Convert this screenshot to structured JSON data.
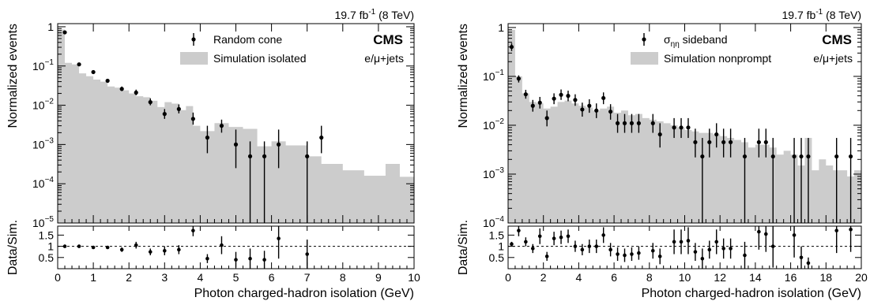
{
  "colors": {
    "simulation_fill": "#cccccc",
    "data_marker": "#000000",
    "frame": "#000000"
  },
  "chart_data": [
    {
      "type": "histogram",
      "lumi": {
        "value": "19.7 fb",
        "exp": "-1",
        "energy": " (8 TeV)"
      },
      "cms": "CMS",
      "channel": "e/μ+jets",
      "ylabel": "Normalized events",
      "ratio_ylabel": "Data/Sim.",
      "xlabel": "Photon charged-hadron isolation (GeV)",
      "xlim": [
        0,
        10
      ],
      "ylim": [
        1e-05,
        1.2
      ],
      "yscale": "log",
      "ratio_ylim": [
        0,
        1.9
      ],
      "x_ticks": [
        "0",
        "1",
        "2",
        "3",
        "4",
        "5",
        "6",
        "7",
        "8",
        "9",
        "10"
      ],
      "y_ticks": [
        {
          "base": "1",
          "exp": ""
        },
        {
          "base": "10",
          "exp": "−1"
        },
        {
          "base": "10",
          "exp": "−2"
        },
        {
          "base": "10",
          "exp": "−3"
        },
        {
          "base": "10",
          "exp": "−4"
        },
        {
          "base": "10",
          "exp": "−5"
        }
      ],
      "ratio_ticks": [
        "0.5",
        "1",
        "1.5"
      ],
      "legend": {
        "data": "Random cone",
        "sim": "Simulation isolated"
      },
      "sim_bins": {
        "edges": [
          0,
          0.2,
          0.4,
          0.6,
          0.8,
          1.0,
          1.2,
          1.4,
          1.6,
          1.8,
          2.0,
          2.2,
          2.4,
          2.6,
          2.8,
          3.0,
          3.2,
          3.4,
          3.6,
          3.8,
          4.0,
          4.4,
          4.8,
          5.2,
          5.6,
          6.0,
          6.4,
          7.0,
          7.4,
          8.0,
          8.6,
          9.2,
          9.6,
          10.0
        ],
        "values": [
          0.85,
          0.12,
          0.11,
          0.065,
          0.055,
          0.045,
          0.04,
          0.03,
          0.028,
          0.024,
          0.02,
          0.017,
          0.016,
          0.013,
          0.009,
          0.012,
          0.011,
          0.0075,
          0.0095,
          0.003,
          0.0022,
          0.0035,
          0.0028,
          0.0025,
          0.0009,
          0.0012,
          0.00095,
          0.0005,
          0.00032,
          0.00022,
          0.00016,
          0.00032,
          0.00015
        ]
      },
      "data_points": [
        {
          "x": 0.2,
          "y": 0.72,
          "lo": 0.65,
          "hi": 0.8
        },
        {
          "x": 0.6,
          "y": 0.11,
          "lo": 0.1,
          "hi": 0.12
        },
        {
          "x": 1.0,
          "y": 0.07,
          "lo": 0.064,
          "hi": 0.077
        },
        {
          "x": 1.4,
          "y": 0.042,
          "lo": 0.038,
          "hi": 0.047
        },
        {
          "x": 1.8,
          "y": 0.026,
          "lo": 0.023,
          "hi": 0.03
        },
        {
          "x": 2.2,
          "y": 0.021,
          "lo": 0.018,
          "hi": 0.025
        },
        {
          "x": 2.6,
          "y": 0.012,
          "lo": 0.01,
          "hi": 0.015
        },
        {
          "x": 3.0,
          "y": 0.006,
          "lo": 0.0045,
          "hi": 0.008
        },
        {
          "x": 3.4,
          "y": 0.008,
          "lo": 0.0062,
          "hi": 0.0105
        },
        {
          "x": 3.8,
          "y": 0.0045,
          "lo": 0.0032,
          "hi": 0.0065
        },
        {
          "x": 4.2,
          "y": 0.0015,
          "lo": 0.0006,
          "hi": 0.003
        },
        {
          "x": 4.6,
          "y": 0.003,
          "lo": 0.002,
          "hi": 0.0043
        },
        {
          "x": 5.0,
          "y": 0.001,
          "lo": 0.00025,
          "hi": 0.0024
        },
        {
          "x": 5.4,
          "y": 0.0005,
          "lo": 1e-05,
          "hi": 0.0012
        },
        {
          "x": 5.8,
          "y": 0.0005,
          "lo": 1e-05,
          "hi": 0.0012
        },
        {
          "x": 6.2,
          "y": 0.001,
          "lo": 0.00025,
          "hi": 0.0024
        },
        {
          "x": 7.0,
          "y": 0.0005,
          "lo": 1e-05,
          "hi": 0.0012
        },
        {
          "x": 7.4,
          "y": 0.0015,
          "lo": 0.0006,
          "hi": 0.003
        }
      ],
      "ratio_points": [
        {
          "x": 0.2,
          "y": 1.0,
          "err": 0.05
        },
        {
          "x": 0.6,
          "y": 1.0,
          "err": 0.05
        },
        {
          "x": 1.0,
          "y": 0.95,
          "err": 0.06
        },
        {
          "x": 1.4,
          "y": 0.95,
          "err": 0.07
        },
        {
          "x": 1.8,
          "y": 0.85,
          "err": 0.1
        },
        {
          "x": 2.2,
          "y": 1.05,
          "err": 0.15
        },
        {
          "x": 2.6,
          "y": 0.75,
          "err": 0.15
        },
        {
          "x": 3.0,
          "y": 0.8,
          "err": 0.2
        },
        {
          "x": 3.4,
          "y": 0.85,
          "err": 0.2
        },
        {
          "x": 3.8,
          "y": 1.7,
          "err": 0.25
        },
        {
          "x": 4.2,
          "y": 0.45,
          "err": 0.2
        },
        {
          "x": 4.6,
          "y": 1.05,
          "err": 0.4
        },
        {
          "x": 5.0,
          "y": 0.4,
          "err": 0.35
        },
        {
          "x": 5.4,
          "y": 0.45,
          "err": 0.45
        },
        {
          "x": 5.8,
          "y": 0.4,
          "err": 0.4
        },
        {
          "x": 6.2,
          "y": 1.35,
          "err": 0.9
        },
        {
          "x": 7.0,
          "y": 0.65,
          "err": 0.65
        }
      ]
    },
    {
      "type": "histogram",
      "lumi": {
        "value": "19.7 fb",
        "exp": "-1",
        "energy": " (8 TeV)"
      },
      "cms": "CMS",
      "channel": "e/μ+jets",
      "ylabel": "Normalized events",
      "ratio_ylabel": "Data/Sim.",
      "xlabel": "Photon charged-hadron isolation (GeV)",
      "xlim": [
        0,
        20
      ],
      "ylim": [
        0.0001,
        1.2
      ],
      "yscale": "log",
      "ratio_ylim": [
        0,
        1.9
      ],
      "x_ticks": [
        "0",
        "2",
        "4",
        "6",
        "8",
        "10",
        "12",
        "14",
        "16",
        "18",
        "20"
      ],
      "y_ticks": [
        {
          "base": "1",
          "exp": ""
        },
        {
          "base": "10",
          "exp": "−1"
        },
        {
          "base": "10",
          "exp": "−2"
        },
        {
          "base": "10",
          "exp": "−3"
        },
        {
          "base": "10",
          "exp": "−4"
        }
      ],
      "ratio_ticks": [
        "0.5",
        "1",
        "1.5"
      ],
      "legend": {
        "data": "σ",
        "data_sub": "ηη",
        "data_rest": " sideband",
        "sim": "Simulation nonprompt"
      },
      "sim_bins": {
        "edges": [
          0,
          0.4,
          0.8,
          1.2,
          1.6,
          2.0,
          2.4,
          2.8,
          3.2,
          3.6,
          4.0,
          4.4,
          4.8,
          5.2,
          5.6,
          6.0,
          6.4,
          6.8,
          7.2,
          7.6,
          8.0,
          8.4,
          8.8,
          9.2,
          9.6,
          10.0,
          10.4,
          10.8,
          11.2,
          11.6,
          12.0,
          12.4,
          12.8,
          13.2,
          13.6,
          14.0,
          14.4,
          14.8,
          15.2,
          15.6,
          16.0,
          16.4,
          16.8,
          17.2,
          17.6,
          18.0,
          18.4,
          18.8,
          19.2,
          19.6,
          20.0
        ],
        "values": [
          0.9,
          0.1,
          0.045,
          0.03,
          0.028,
          0.022,
          0.024,
          0.03,
          0.032,
          0.028,
          0.025,
          0.023,
          0.02,
          0.022,
          0.024,
          0.018,
          0.02,
          0.016,
          0.017,
          0.014,
          0.013,
          0.012,
          0.011,
          0.01,
          0.009,
          0.008,
          0.0075,
          0.007,
          0.007,
          0.0065,
          0.006,
          0.0055,
          0.005,
          0.0045,
          0.0035,
          0.004,
          0.004,
          0.0035,
          0.0025,
          0.003,
          0.0025,
          0.0015,
          0.0055,
          0.0012,
          0.002,
          0.0015,
          0.0012,
          0.0012,
          0.0009,
          0.0012
        ]
      },
      "data_points": [
        {
          "x": 0.2,
          "y": 0.4,
          "lo": 0.33,
          "hi": 0.48
        },
        {
          "x": 0.6,
          "y": 0.09,
          "lo": 0.075,
          "hi": 0.105
        },
        {
          "x": 1.0,
          "y": 0.043,
          "lo": 0.035,
          "hi": 0.053
        },
        {
          "x": 1.4,
          "y": 0.025,
          "lo": 0.019,
          "hi": 0.033
        },
        {
          "x": 1.8,
          "y": 0.029,
          "lo": 0.022,
          "hi": 0.038
        },
        {
          "x": 2.2,
          "y": 0.014,
          "lo": 0.0095,
          "hi": 0.02
        },
        {
          "x": 2.6,
          "y": 0.035,
          "lo": 0.027,
          "hi": 0.045
        },
        {
          "x": 3.0,
          "y": 0.042,
          "lo": 0.033,
          "hi": 0.054
        },
        {
          "x": 3.4,
          "y": 0.04,
          "lo": 0.031,
          "hi": 0.051
        },
        {
          "x": 3.8,
          "y": 0.033,
          "lo": 0.025,
          "hi": 0.043
        },
        {
          "x": 4.2,
          "y": 0.021,
          "lo": 0.015,
          "hi": 0.029
        },
        {
          "x": 4.6,
          "y": 0.025,
          "lo": 0.018,
          "hi": 0.034
        },
        {
          "x": 5.0,
          "y": 0.02,
          "lo": 0.014,
          "hi": 0.028
        },
        {
          "x": 5.4,
          "y": 0.036,
          "lo": 0.027,
          "hi": 0.047
        },
        {
          "x": 5.8,
          "y": 0.019,
          "lo": 0.013,
          "hi": 0.027
        },
        {
          "x": 6.2,
          "y": 0.011,
          "lo": 0.007,
          "hi": 0.017
        },
        {
          "x": 6.6,
          "y": 0.011,
          "lo": 0.007,
          "hi": 0.017
        },
        {
          "x": 7.0,
          "y": 0.011,
          "lo": 0.007,
          "hi": 0.017
        },
        {
          "x": 7.4,
          "y": 0.011,
          "lo": 0.007,
          "hi": 0.017
        },
        {
          "x": 8.2,
          "y": 0.011,
          "lo": 0.007,
          "hi": 0.017
        },
        {
          "x": 8.6,
          "y": 0.0065,
          "lo": 0.0035,
          "hi": 0.011
        },
        {
          "x": 9.4,
          "y": 0.009,
          "lo": 0.0055,
          "hi": 0.014
        },
        {
          "x": 9.8,
          "y": 0.009,
          "lo": 0.0055,
          "hi": 0.014
        },
        {
          "x": 10.2,
          "y": 0.009,
          "lo": 0.0055,
          "hi": 0.014
        },
        {
          "x": 10.6,
          "y": 0.0045,
          "lo": 0.0022,
          "hi": 0.0085
        },
        {
          "x": 11.0,
          "y": 0.0023,
          "lo": 0.0001,
          "hi": 0.0055
        },
        {
          "x": 11.4,
          "y": 0.0045,
          "lo": 0.0022,
          "hi": 0.0085
        },
        {
          "x": 11.8,
          "y": 0.0065,
          "lo": 0.0035,
          "hi": 0.011
        },
        {
          "x": 12.2,
          "y": 0.0045,
          "lo": 0.0022,
          "hi": 0.0085
        },
        {
          "x": 12.6,
          "y": 0.0045,
          "lo": 0.0022,
          "hi": 0.0085
        },
        {
          "x": 13.4,
          "y": 0.0023,
          "lo": 0.0001,
          "hi": 0.0055
        },
        {
          "x": 14.2,
          "y": 0.0045,
          "lo": 0.0022,
          "hi": 0.0085
        },
        {
          "x": 14.6,
          "y": 0.0045,
          "lo": 0.0022,
          "hi": 0.0085
        },
        {
          "x": 15.0,
          "y": 0.0023,
          "lo": 0.0001,
          "hi": 0.0055
        },
        {
          "x": 16.2,
          "y": 0.0023,
          "lo": 0.0001,
          "hi": 0.0055
        },
        {
          "x": 16.6,
          "y": 0.0023,
          "lo": 0.0001,
          "hi": 0.0055
        },
        {
          "x": 17.0,
          "y": 0.0023,
          "lo": 0.0001,
          "hi": 0.0055
        },
        {
          "x": 18.6,
          "y": 0.0023,
          "lo": 0.0001,
          "hi": 0.0055
        },
        {
          "x": 19.4,
          "y": 0.0023,
          "lo": 0.0001,
          "hi": 0.0055
        }
      ],
      "ratio_points": [
        {
          "x": 0.2,
          "y": 1.1,
          "err": 0.1
        },
        {
          "x": 0.6,
          "y": 1.7,
          "err": 0.25
        },
        {
          "x": 1.0,
          "y": 1.2,
          "err": 0.2
        },
        {
          "x": 1.4,
          "y": 0.9,
          "err": 0.2
        },
        {
          "x": 1.8,
          "y": 1.45,
          "err": 0.35
        },
        {
          "x": 2.2,
          "y": 0.55,
          "err": 0.2
        },
        {
          "x": 2.6,
          "y": 1.35,
          "err": 0.3
        },
        {
          "x": 3.0,
          "y": 1.4,
          "err": 0.3
        },
        {
          "x": 3.4,
          "y": 1.45,
          "err": 0.3
        },
        {
          "x": 3.8,
          "y": 1.0,
          "err": 0.25
        },
        {
          "x": 4.2,
          "y": 0.85,
          "err": 0.25
        },
        {
          "x": 4.6,
          "y": 1.0,
          "err": 0.3
        },
        {
          "x": 5.0,
          "y": 1.0,
          "err": 0.3
        },
        {
          "x": 5.4,
          "y": 1.5,
          "err": 0.35
        },
        {
          "x": 5.8,
          "y": 0.85,
          "err": 0.3
        },
        {
          "x": 6.2,
          "y": 0.65,
          "err": 0.3
        },
        {
          "x": 6.6,
          "y": 0.6,
          "err": 0.3
        },
        {
          "x": 7.0,
          "y": 0.65,
          "err": 0.3
        },
        {
          "x": 7.4,
          "y": 0.7,
          "err": 0.3
        },
        {
          "x": 8.2,
          "y": 0.8,
          "err": 0.35
        },
        {
          "x": 8.6,
          "y": 0.55,
          "err": 0.35
        },
        {
          "x": 9.4,
          "y": 1.2,
          "err": 0.55
        },
        {
          "x": 9.8,
          "y": 1.2,
          "err": 0.55
        },
        {
          "x": 10.2,
          "y": 1.25,
          "err": 0.6
        },
        {
          "x": 10.6,
          "y": 0.75,
          "err": 0.4
        },
        {
          "x": 11.0,
          "y": 0.45,
          "err": 0.45
        },
        {
          "x": 11.4,
          "y": 0.85,
          "err": 0.4
        },
        {
          "x": 11.8,
          "y": 1.2,
          "err": 0.55
        },
        {
          "x": 12.2,
          "y": 0.9,
          "err": 0.45
        },
        {
          "x": 12.6,
          "y": 0.9,
          "err": 0.45
        },
        {
          "x": 13.4,
          "y": 0.6,
          "err": 0.6
        },
        {
          "x": 14.2,
          "y": 1.65,
          "err": 0.8
        },
        {
          "x": 14.6,
          "y": 1.55,
          "err": 0.8
        },
        {
          "x": 15.0,
          "y": 1.0,
          "err": 0.95
        },
        {
          "x": 16.2,
          "y": 1.5,
          "err": 1.0
        },
        {
          "x": 16.6,
          "y": 0.5,
          "err": 0.5
        },
        {
          "x": 17.0,
          "y": 0.25,
          "err": 0.25
        },
        {
          "x": 18.6,
          "y": 1.7,
          "err": 1.0
        },
        {
          "x": 19.4,
          "y": 1.75,
          "err": 1.0
        }
      ]
    }
  ]
}
